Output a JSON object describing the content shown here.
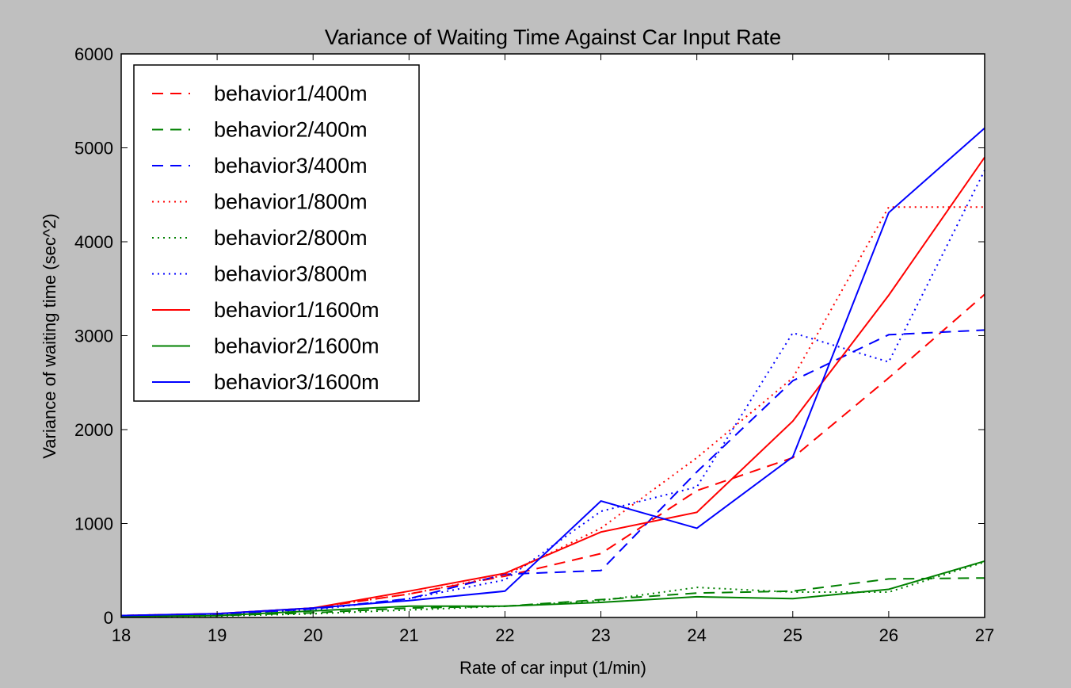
{
  "chart_data": {
    "type": "line",
    "title": "Variance of Waiting Time Against Car Input Rate",
    "xlabel": "Rate of car input (1/min)",
    "ylabel": "Variance of waiting time (sec^2)",
    "xlim": [
      18,
      27
    ],
    "ylim": [
      0,
      6000
    ],
    "xticks": [
      "18",
      "19",
      "20",
      "21",
      "22",
      "23",
      "24",
      "25",
      "26",
      "27"
    ],
    "yticks": [
      "0",
      "1000",
      "2000",
      "3000",
      "4000",
      "5000",
      "6000"
    ],
    "grid": false,
    "legend_position": "top-left",
    "x": [
      18,
      19,
      20,
      21,
      22,
      23,
      24,
      25,
      26,
      27
    ],
    "series": [
      {
        "name": "behavior1/400m",
        "color": "#ff0000",
        "style": "dashed",
        "values": [
          20,
          40,
          100,
          250,
          440,
          680,
          1350,
          1700,
          2550,
          3440
        ]
      },
      {
        "name": "behavior2/400m",
        "color": "#008000",
        "style": "dashed",
        "values": [
          10,
          20,
          50,
          100,
          120,
          190,
          260,
          280,
          410,
          420
        ]
      },
      {
        "name": "behavior3/400m",
        "color": "#0000ff",
        "style": "dashed",
        "values": [
          20,
          35,
          90,
          200,
          460,
          500,
          1550,
          2520,
          3010,
          3060
        ]
      },
      {
        "name": "behavior1/800m",
        "color": "#ff0000",
        "style": "dotted",
        "values": [
          20,
          40,
          100,
          250,
          450,
          950,
          1700,
          2550,
          4370,
          4370
        ]
      },
      {
        "name": "behavior2/800m",
        "color": "#008000",
        "style": "dotted",
        "values": [
          10,
          15,
          40,
          80,
          120,
          180,
          320,
          270,
          270,
          590
        ]
      },
      {
        "name": "behavior3/800m",
        "color": "#0000ff",
        "style": "dotted",
        "values": [
          20,
          35,
          80,
          200,
          400,
          1130,
          1390,
          3030,
          2720,
          4760
        ]
      },
      {
        "name": "behavior1/1600m",
        "color": "#ff0000",
        "style": "solid",
        "values": [
          20,
          40,
          100,
          280,
          470,
          910,
          1120,
          2090,
          3430,
          4900
        ]
      },
      {
        "name": "behavior2/1600m",
        "color": "#008000",
        "style": "solid",
        "values": [
          10,
          20,
          70,
          120,
          120,
          160,
          220,
          200,
          300,
          600
        ]
      },
      {
        "name": "behavior3/1600m",
        "color": "#0000ff",
        "style": "solid",
        "values": [
          20,
          40,
          100,
          180,
          280,
          1240,
          950,
          1710,
          4310,
          5210
        ]
      }
    ]
  }
}
